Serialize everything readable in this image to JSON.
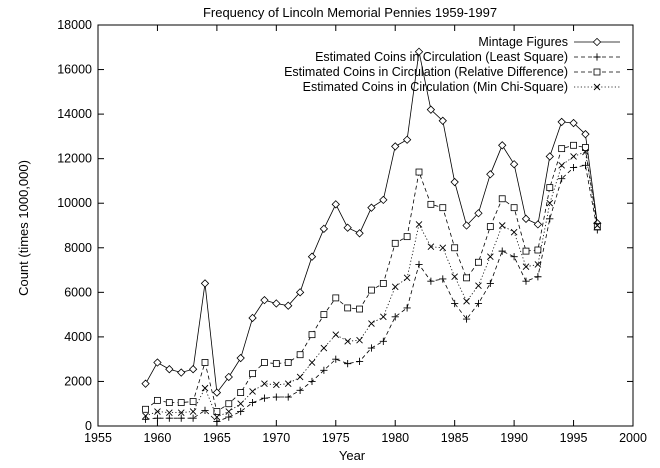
{
  "chart_data": {
    "type": "line",
    "title": "Frequency of Lincoln Memorial Pennies 1959-1997",
    "xlabel": "Year",
    "ylabel": "Count (times 1000,000)",
    "xlim": [
      1955,
      2000
    ],
    "ylim": [
      0,
      18000
    ],
    "xticks": [
      1955,
      1960,
      1965,
      1970,
      1975,
      1980,
      1985,
      1990,
      1995,
      2000
    ],
    "yticks": [
      0,
      2000,
      4000,
      6000,
      8000,
      10000,
      12000,
      14000,
      16000,
      18000
    ],
    "legend_position": "top-right",
    "grid": false,
    "x": [
      1959,
      1960,
      1961,
      1962,
      1963,
      1964,
      1965,
      1966,
      1967,
      1968,
      1969,
      1970,
      1971,
      1972,
      1973,
      1974,
      1975,
      1976,
      1977,
      1978,
      1979,
      1980,
      1981,
      1982,
      1983,
      1984,
      1985,
      1986,
      1987,
      1988,
      1989,
      1990,
      1991,
      1992,
      1993,
      1994,
      1995,
      1996,
      1997
    ],
    "series": [
      {
        "name": "Mintage Figures",
        "line": "solid",
        "marker": "diamond",
        "values": [
          1900,
          2850,
          2550,
          2400,
          2550,
          6400,
          1500,
          2200,
          3050,
          4850,
          5650,
          5500,
          5400,
          6000,
          7600,
          8850,
          9950,
          8900,
          8650,
          9800,
          10150,
          12550,
          12850,
          16800,
          14200,
          13700,
          10950,
          9000,
          9550,
          11300,
          12600,
          11750,
          9300,
          9050,
          12100,
          13650,
          13600,
          13100,
          9100
        ]
      },
      {
        "name": "Estimated Coins in Circulation (Least Square)",
        "line": "dashed",
        "marker": "plus",
        "values": [
          300,
          350,
          350,
          350,
          350,
          700,
          200,
          400,
          650,
          1050,
          1250,
          1300,
          1300,
          1600,
          2000,
          2500,
          3000,
          2800,
          2900,
          3500,
          3800,
          4900,
          5300,
          7250,
          6500,
          6600,
          5500,
          4800,
          5500,
          6400,
          7850,
          7600,
          6500,
          6700,
          9300,
          11100,
          11600,
          11700,
          8800
        ]
      },
      {
        "name": "Estimated Coins in Circulation (Relative Difference)",
        "line": "dashed",
        "marker": "square",
        "values": [
          750,
          1150,
          1050,
          1050,
          1100,
          2850,
          650,
          1000,
          1500,
          2350,
          2850,
          2800,
          2850,
          3200,
          4100,
          5000,
          5750,
          5300,
          5250,
          6100,
          6400,
          8200,
          8500,
          11400,
          9950,
          9800,
          8000,
          6650,
          7350,
          8950,
          10200,
          9800,
          7850,
          7900,
          10700,
          12450,
          12600,
          12500,
          8950
        ]
      },
      {
        "name": "Estimated Coins in Circulation (Min Chi-Square)",
        "line": "dotted",
        "marker": "cross",
        "values": [
          450,
          650,
          600,
          600,
          650,
          1700,
          400,
          650,
          1000,
          1550,
          1900,
          1850,
          1900,
          2200,
          2850,
          3500,
          4100,
          3800,
          3850,
          4600,
          4900,
          6250,
          6650,
          9050,
          8050,
          8000,
          6700,
          5600,
          6300,
          7600,
          9000,
          8700,
          7150,
          7250,
          10000,
          11700,
          12100,
          12300,
          9000
        ]
      }
    ]
  }
}
